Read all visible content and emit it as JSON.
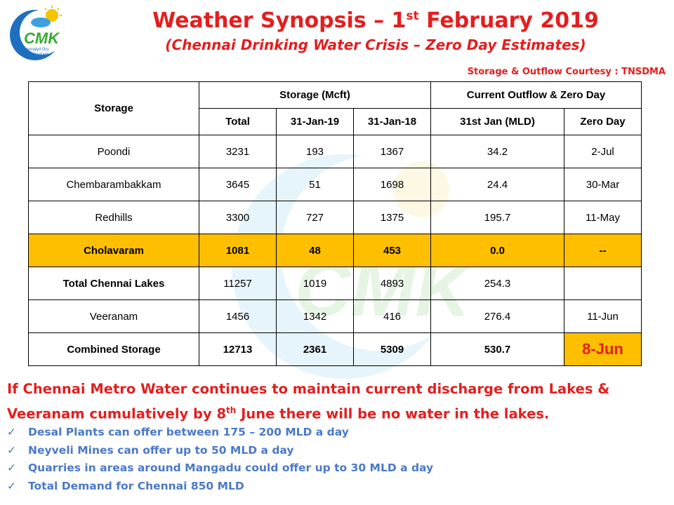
{
  "header": {
    "logo_text": "CMK",
    "title_prefix": "Weather Synopsis – 1",
    "title_sup": "st",
    "title_suffix": " February 2019",
    "subtitle": "(Chennai Drinking Water Crisis – Zero Day Estimates)",
    "courtesy": "Storage &  Outflow Courtesy : TNSDMA"
  },
  "table": {
    "col_storage": "Storage",
    "group_storage": "Storage (Mcft)",
    "group_outflow": "Current Outflow & Zero Day",
    "sub_total": "Total",
    "sub_jan19": "31-Jan-19",
    "sub_jan18": "31-Jan-18",
    "sub_outflow": "31st Jan (MLD)",
    "sub_zero": "Zero Day",
    "rows": [
      {
        "name": "Poondi",
        "total": "3231",
        "jan19": "193",
        "jan18": "1367",
        "outflow": "34.2",
        "zero": "2-Jul"
      },
      {
        "name": "Chembarambakkam",
        "total": "3645",
        "jan19": "51",
        "jan18": "1698",
        "outflow": "24.4",
        "zero": "30-Mar"
      },
      {
        "name": "Redhills",
        "total": "3300",
        "jan19": "727",
        "jan18": "1375",
        "outflow": "195.7",
        "zero": "11-May"
      },
      {
        "name": "Cholavaram",
        "total": "1081",
        "jan19": "48",
        "jan18": "453",
        "outflow": "0.0",
        "zero": "--"
      },
      {
        "name": "Total Chennai Lakes",
        "total": "11257",
        "jan19": "1019",
        "jan18": "4893",
        "outflow": "254.3",
        "zero": ""
      },
      {
        "name": "Veeranam",
        "total": "1456",
        "jan19": "1342",
        "jan18": "416",
        "outflow": "276.4",
        "zero": "11-Jun"
      },
      {
        "name": "Combined Storage",
        "total": "12713",
        "jan19": "2361",
        "jan18": "5309",
        "outflow": "530.7",
        "zero": "8-Jun"
      }
    ]
  },
  "note": {
    "part1": "If Chennai Metro Water continues to maintain current discharge from Lakes & Veeranam cumulatively by 8",
    "sup": "th",
    "part2": " June there will  be no water in the lakes."
  },
  "points": [
    "Desal Plants can offer between 175 – 200 MLD a day",
    "Neyveli Mines can offer up to 50 MLD a day",
    "Quarries  in areas around  Mangadu  could offer up to 30 MLD a day",
    "Total Demand for Chennai 850 MLD"
  ],
  "colors": {
    "title_red": "#e41e1e",
    "highlight": "#fdbf00",
    "bullet_blue": "#4a79c9"
  }
}
